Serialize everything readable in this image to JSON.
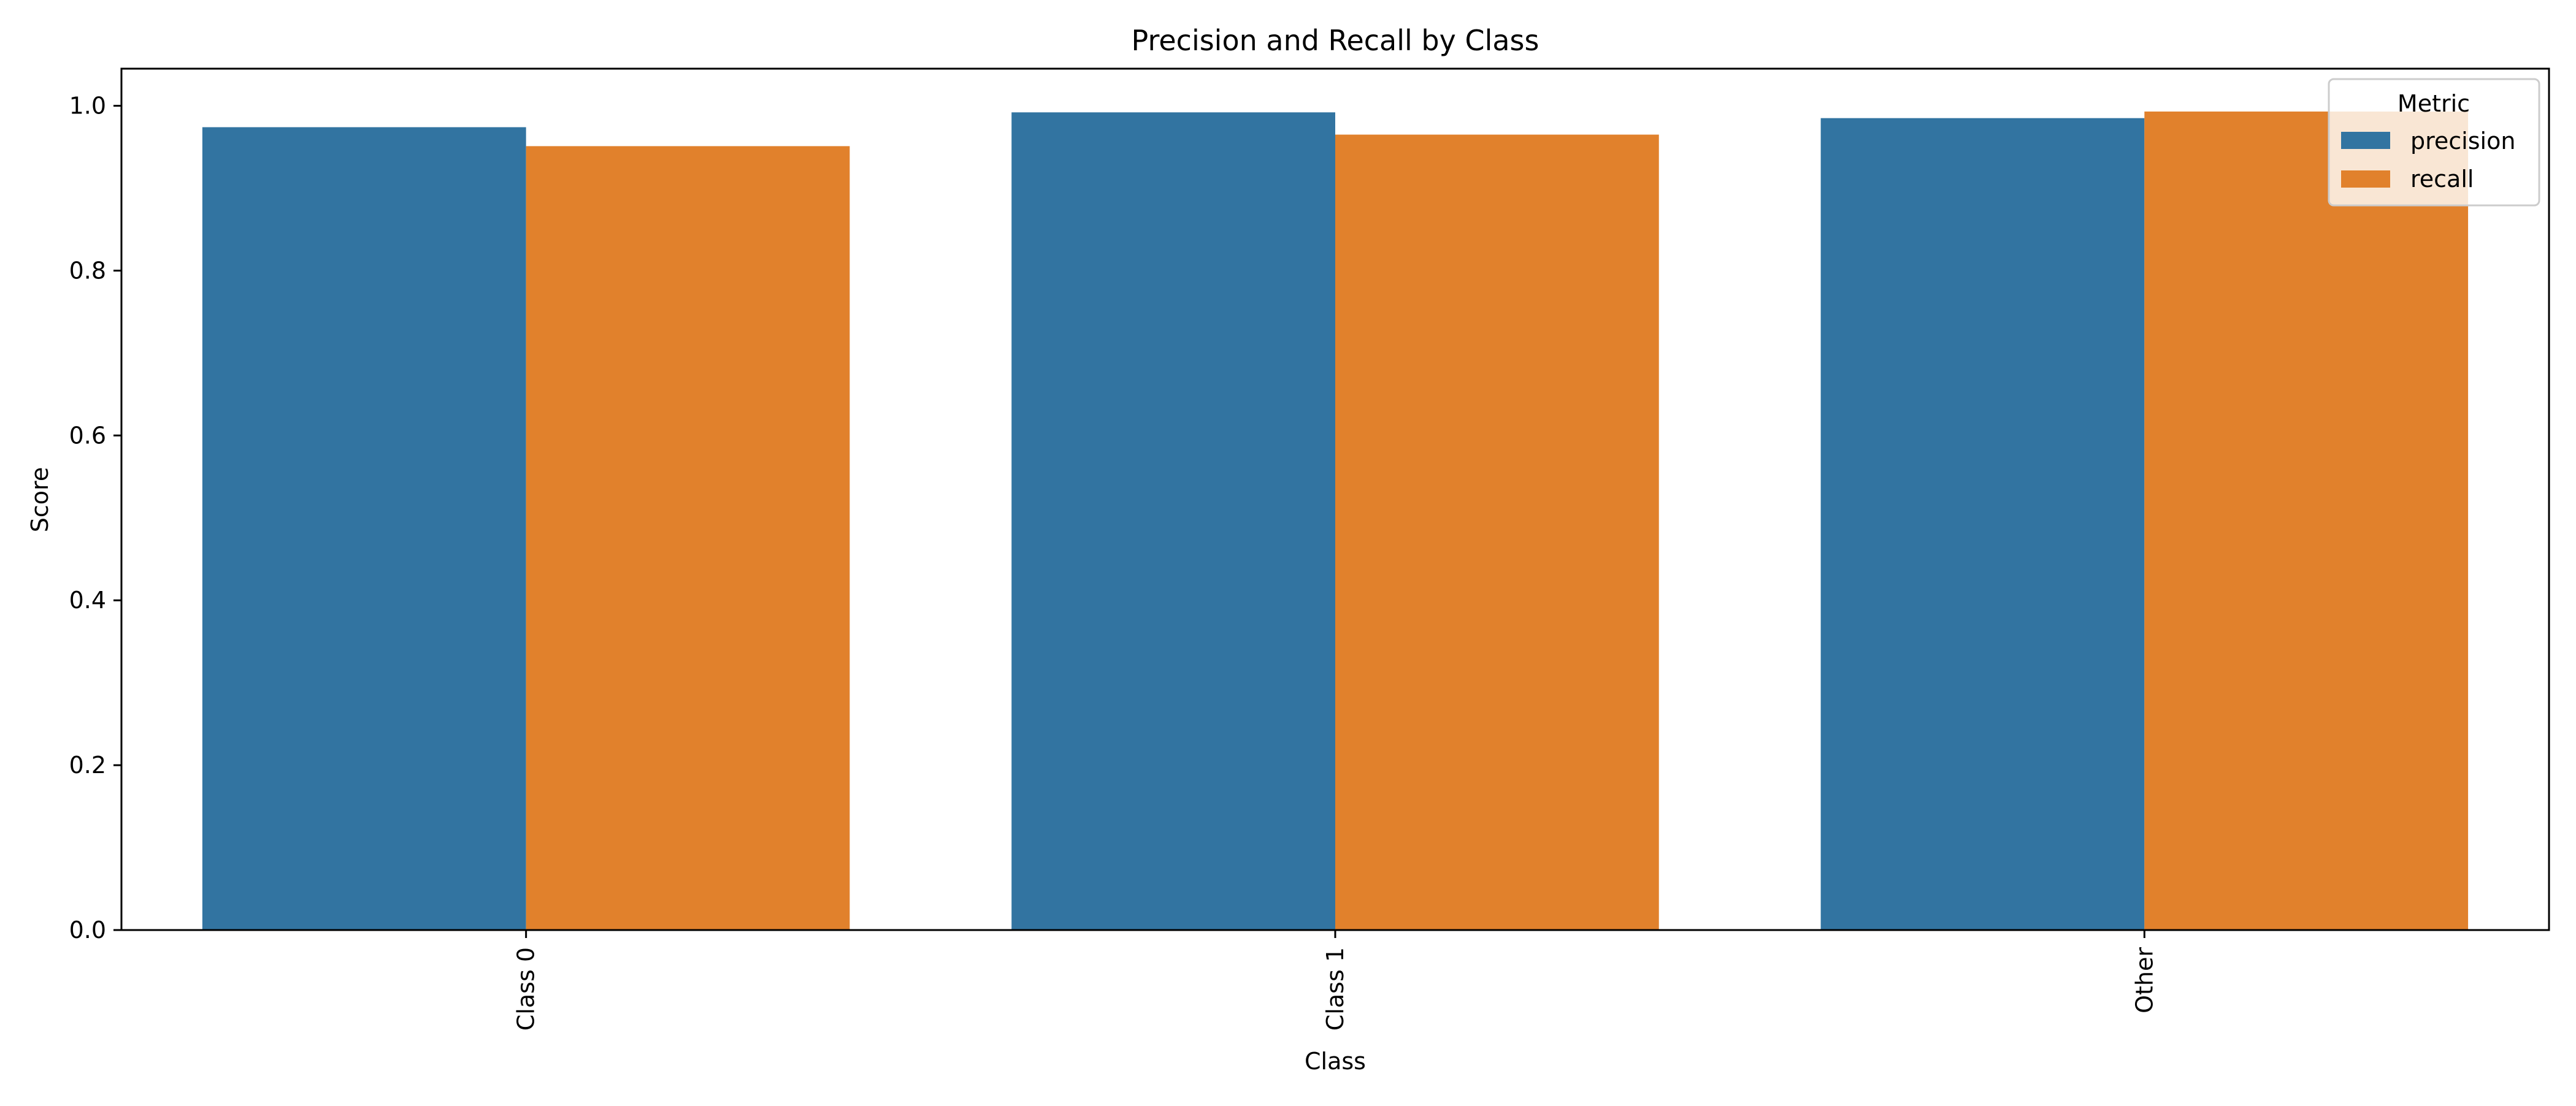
{
  "chart_data": {
    "type": "bar",
    "title": "Precision and Recall by Class",
    "xlabel": "Class",
    "ylabel": "Score",
    "categories": [
      "Class 0",
      "Class 1",
      "Other"
    ],
    "series": [
      {
        "name": "precision",
        "values": [
          0.974,
          0.992,
          0.985
        ],
        "color": "#3274a1"
      },
      {
        "name": "recall",
        "values": [
          0.951,
          0.965,
          0.993
        ],
        "color": "#e1812c"
      }
    ],
    "ylim": [
      0,
      1.045
    ],
    "yticks": [
      "0.0",
      "0.2",
      "0.4",
      "0.6",
      "0.8",
      "1.0"
    ],
    "grid": false,
    "legend": {
      "title": "Metric",
      "position": "top-right"
    }
  }
}
